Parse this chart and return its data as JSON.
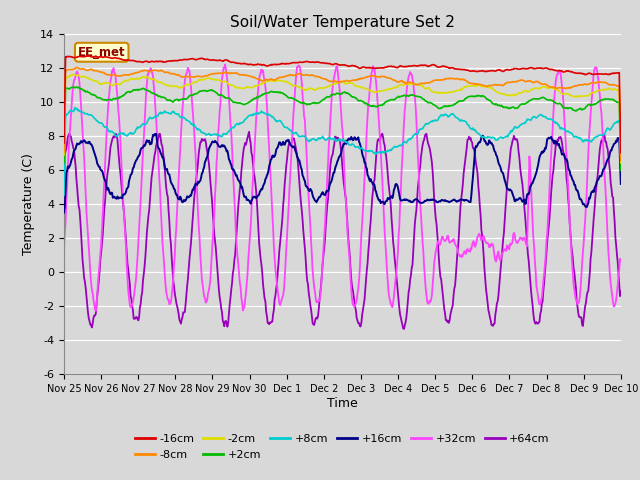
{
  "title": "Soil/Water Temperature Set 2",
  "xlabel": "Time",
  "ylabel": "Temperature (C)",
  "ylim": [
    -6,
    14
  ],
  "xlim": [
    0,
    15
  ],
  "annotation": "EE_met",
  "bg_color": "#d8d8d8",
  "grid_color": "#ffffff",
  "series_colors": {
    "-16cm": "#dd0000",
    "-8cm": "#ff8800",
    "-2cm": "#dddd00",
    "+2cm": "#00bb00",
    "+8cm": "#00cccc",
    "+16cm": "#000088",
    "+32cm": "#ff44ff",
    "+64cm": "#9900bb"
  },
  "xtick_labels": [
    "Nov 25",
    "Nov 26",
    "Nov 27",
    "Nov 28",
    "Nov 29",
    "Nov 30",
    "Dec 1",
    "Dec 2",
    "Dec 3",
    "Dec 4",
    "Dec 5",
    "Dec 6",
    "Dec 7",
    "Dec 8",
    "Dec 9",
    "Dec 10"
  ],
  "ytick_vals": [
    -6,
    -4,
    -2,
    0,
    2,
    4,
    6,
    8,
    10,
    12,
    14
  ],
  "legend_row1": [
    "-16cm",
    "-8cm",
    "-2cm",
    "+2cm",
    "+8cm",
    "+16cm"
  ],
  "legend_row2": [
    "+32cm",
    "+64cm"
  ]
}
